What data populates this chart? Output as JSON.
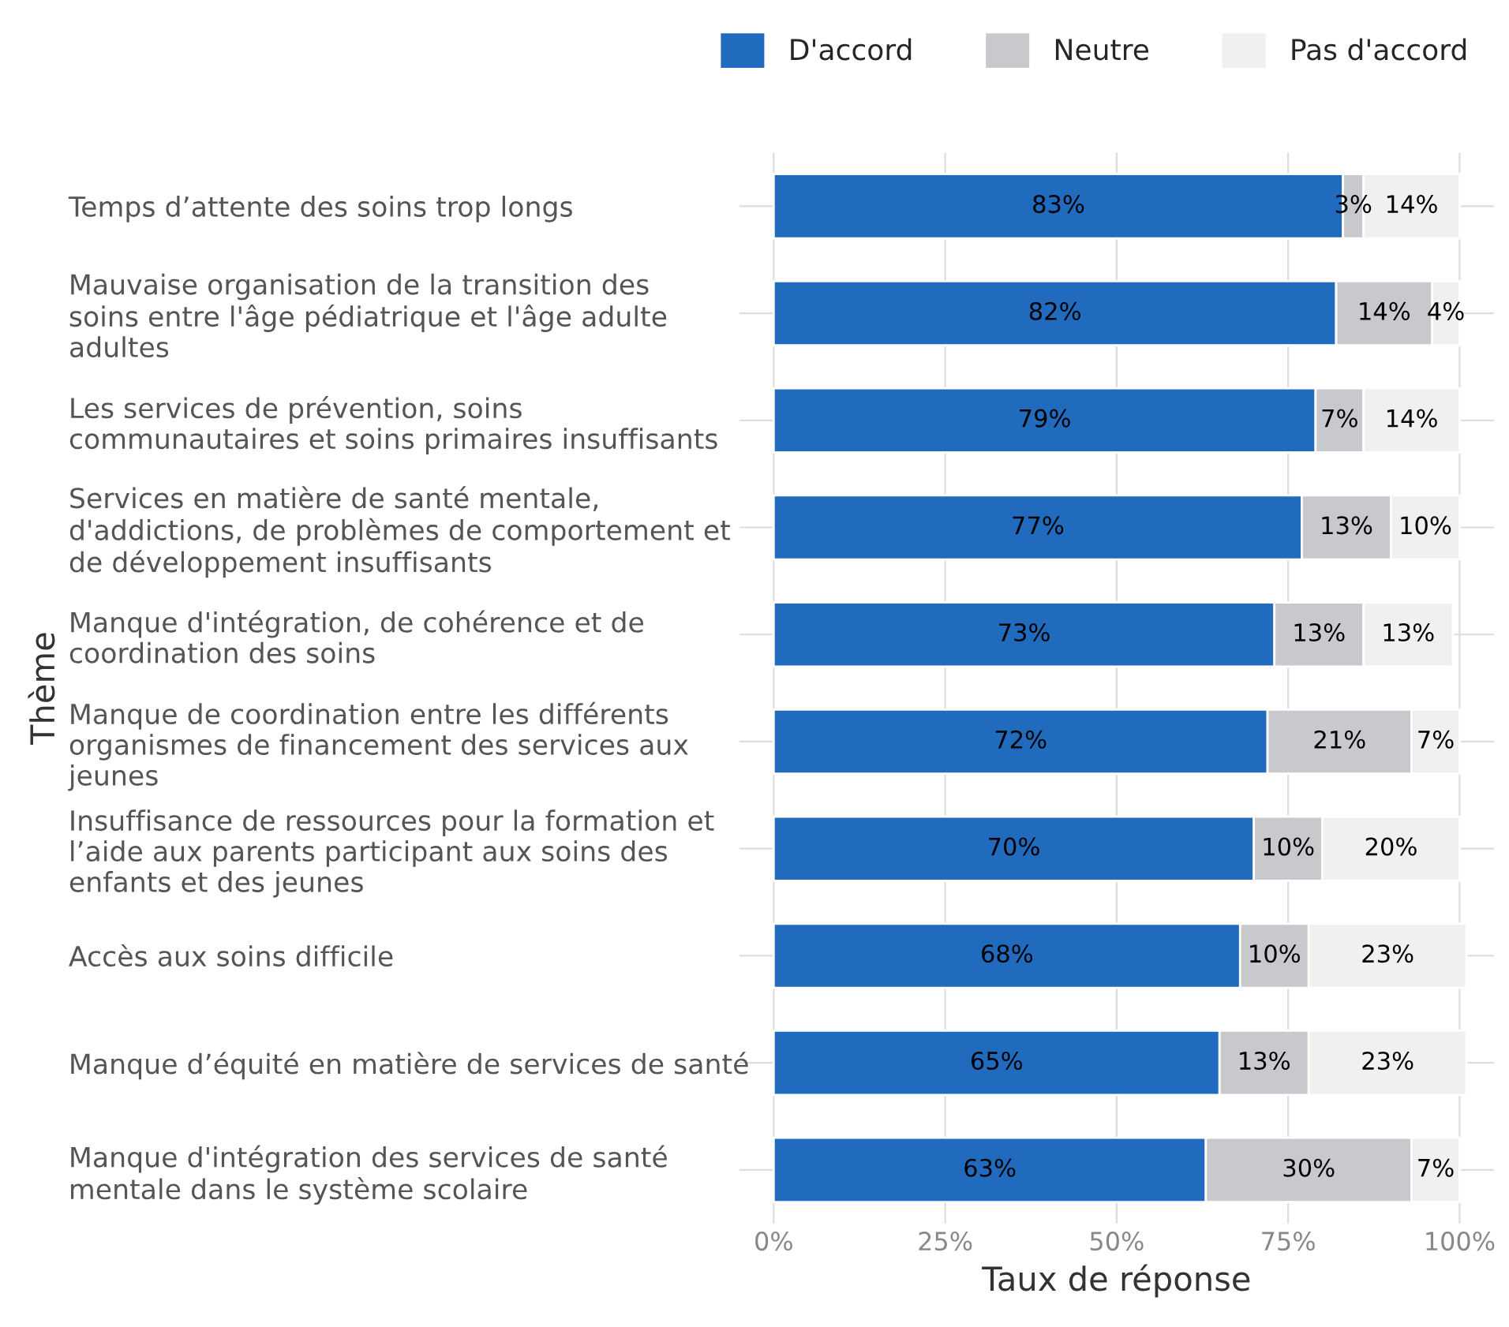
{
  "chart_data": {
    "type": "bar",
    "orientation": "horizontal",
    "stacked": true,
    "xlabel": "Taux de réponse",
    "ylabel": "Thème",
    "categories": [
      "Temps d’attente des soins trop longs",
      "Mauvaise organisation de la transition des\nsoins entre l'âge pédiatrique et l'âge adulte\nadultes",
      "Les services de prévention, soins\ncommunautaires et soins primaires insuffisants",
      "Services en matière de santé mentale,\nd'addictions, de problèmes de comportement et\nde développement insuffisants",
      "Manque d'intégration, de cohérence et de\ncoordination des soins",
      "Manque de coordination entre les différents\norganismes de financement des services aux\njeunes",
      "Insuffisance de ressources pour la formation et\nl’aide aux parents participant aux soins des\nenfants et des jeunes",
      "Accès aux soins difficile",
      "Manque d’équité en matière de services de santé",
      "Manque d'intégration des services de santé\nmentale dans le système scolaire"
    ],
    "series": [
      {
        "name": "D'accord",
        "color": "#216bbf",
        "values": [
          83,
          82,
          79,
          77,
          73,
          72,
          70,
          68,
          65,
          63
        ],
        "value_labels": [
          "83%",
          "82%",
          "79%",
          "77%",
          "73%",
          "72%",
          "70%",
          "68%",
          "65%",
          "63%"
        ]
      },
      {
        "name": "Neutre",
        "color": "#c8c9cc",
        "values": [
          3,
          14,
          7,
          13,
          13,
          21,
          10,
          10,
          13,
          30
        ],
        "value_labels": [
          "3%",
          "14%",
          "7%",
          "13%",
          "13%",
          "21%",
          "10%",
          "10%",
          "13%",
          "30%"
        ]
      },
      {
        "name": "Pas d'accord",
        "color": "#f0f0ef",
        "values": [
          14,
          4,
          14,
          10,
          13,
          7,
          20,
          23,
          23,
          7
        ],
        "value_labels": [
          "14%",
          "4%",
          "14%",
          "10%",
          "13%",
          "7%",
          "20%",
          "23%",
          "23%",
          "7%"
        ]
      }
    ],
    "xlim": [
      -5,
      105
    ],
    "xticks": [
      {
        "value": 0,
        "label": "0%"
      },
      {
        "value": 25,
        "label": "25%"
      },
      {
        "value": 50,
        "label": "50%"
      },
      {
        "value": 75,
        "label": "75%"
      },
      {
        "value": 100,
        "label": "100%"
      }
    ],
    "grid": true,
    "legend": "top right"
  }
}
